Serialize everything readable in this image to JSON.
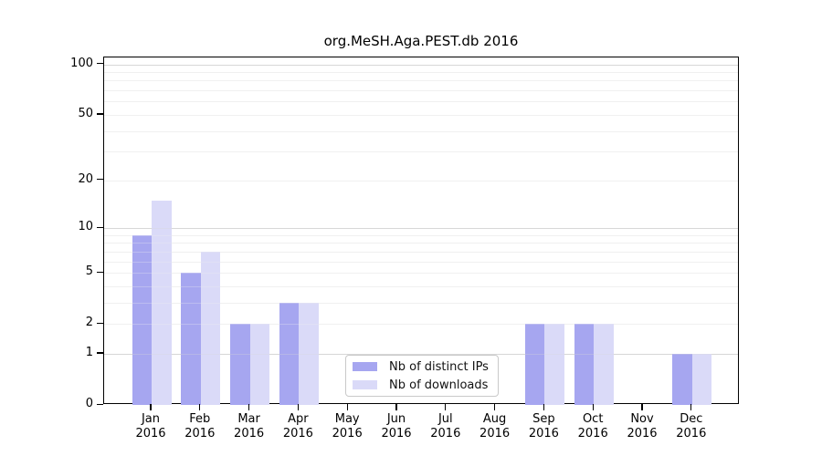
{
  "chart_data": {
    "type": "bar",
    "title": "org.MeSH.Aga.PEST.db 2016",
    "categories": [
      "Jan",
      "Feb",
      "Mar",
      "Apr",
      "May",
      "Jun",
      "Jul",
      "Aug",
      "Sep",
      "Oct",
      "Nov",
      "Dec"
    ],
    "x_tick_second_line": "2016",
    "series": [
      {
        "name": "Nb of distinct IPs",
        "color": "#a6a6f0",
        "values": [
          9,
          5,
          2,
          3,
          0,
          0,
          0,
          0,
          2,
          2,
          0,
          1
        ]
      },
      {
        "name": "Nb of downloads",
        "color": "#dadaf8",
        "values": [
          15,
          7,
          2,
          3,
          0,
          0,
          0,
          0,
          2,
          2,
          0,
          1
        ]
      }
    ],
    "y_axis": {
      "scale": "log10(value+1)",
      "tick_values": [
        0,
        1,
        2,
        5,
        10,
        20,
        50,
        100
      ],
      "major_gridline_values": [
        1,
        10,
        100
      ],
      "minor_gridline_values": [
        2,
        3,
        4,
        5,
        6,
        7,
        8,
        9,
        20,
        30,
        40,
        50,
        60,
        70,
        80,
        90
      ],
      "top_value": 110
    },
    "legend": {
      "position": "lower center inside",
      "items": [
        "Nb of distinct IPs",
        "Nb of downloads"
      ]
    },
    "grid": true,
    "bar_baseline": 0
  },
  "colors": {
    "major_gridline": "#d7d7d7",
    "minor_gridline": "#f0f0f0",
    "axis": "#000000",
    "text": "#000000",
    "legend_border": "#c9c9c9",
    "legend_background": "#ffffff"
  }
}
